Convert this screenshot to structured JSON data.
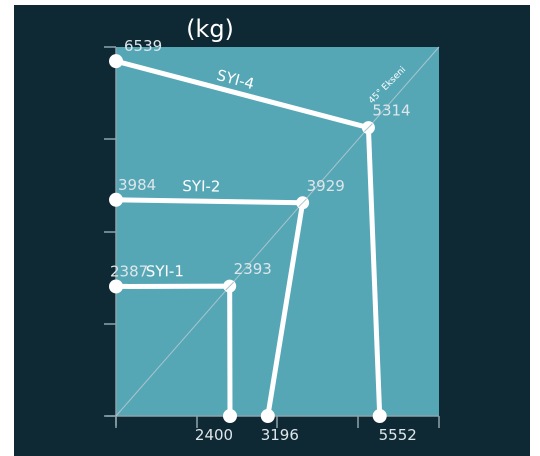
{
  "chart_data": {
    "type": "line",
    "title": "(kg)",
    "diagonal_label": "45° Ekseni",
    "axis_range": [
      0,
      6800
    ],
    "series": [
      {
        "name": "SYI-1",
        "y_start": 2387,
        "mid": 2393,
        "x_end": 2400
      },
      {
        "name": "SYI-2",
        "y_start": 3984,
        "mid": 3929,
        "x_end": 3196
      },
      {
        "name": "SYI-4",
        "y_start": 6539,
        "mid": 5314,
        "x_end": 5552
      }
    ],
    "colors": {
      "background": "#0f2934",
      "plot_area": "#56a7b6",
      "line": "#ffffff",
      "axis": "#8ea4ab",
      "diagonal": "#a9c4cc"
    }
  }
}
